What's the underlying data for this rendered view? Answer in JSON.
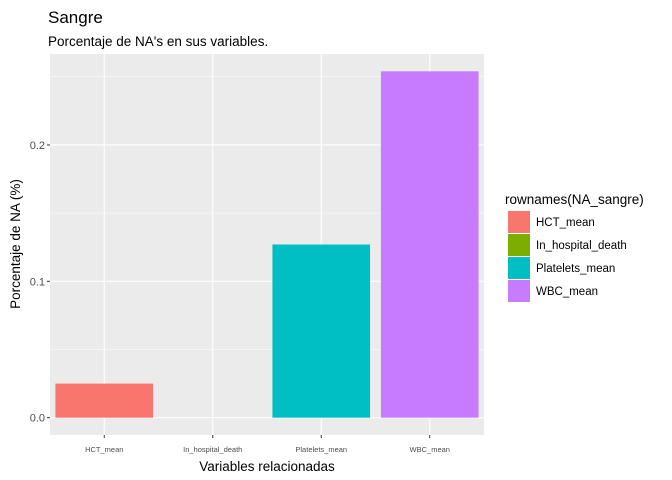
{
  "chart_data": {
    "type": "bar",
    "title": "Sangre",
    "subtitle": "Porcentaje de NA's en sus variables.",
    "xlabel": "Variables relacionadas",
    "ylabel": "Porcentaje de NA (%)",
    "categories": [
      "HCT_mean",
      "In_hospital_death",
      "Platelets_mean",
      "WBC_mean"
    ],
    "values": [
      0.025,
      0.0,
      0.127,
      0.254
    ],
    "ylim": [
      -0.0127,
      0.2667
    ],
    "yticks": [
      0.0,
      0.1,
      0.2
    ],
    "ytick_labels": [
      "0.0",
      "0.1",
      "0.2"
    ],
    "grid": true,
    "legend": {
      "title": "rownames(NA_sangre)",
      "placement": "right",
      "entries": [
        "HCT_mean",
        "In_hospital_death",
        "Platelets_mean",
        "WBC_mean"
      ]
    },
    "colors": [
      "#F8766D",
      "#7CAE00",
      "#00BFC4",
      "#C77CFF"
    ],
    "panel_background": "#EBEBEB",
    "grid_color": "#FFFFFF"
  }
}
